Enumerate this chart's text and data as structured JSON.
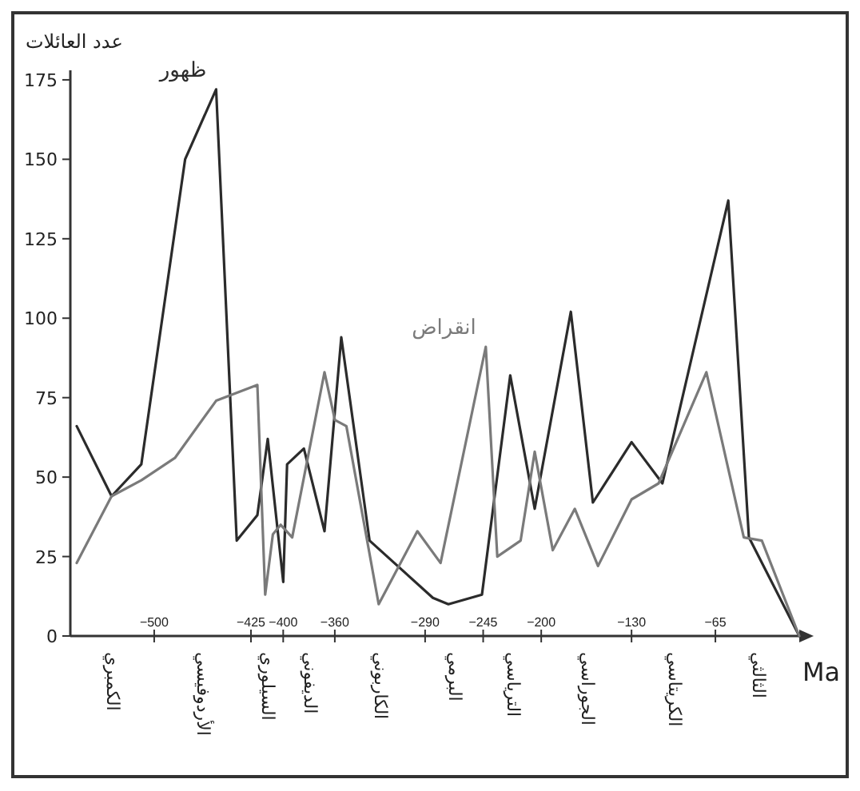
{
  "chart_data": {
    "type": "line",
    "ylabel": "عدد العائلات",
    "xlabel": "Ma",
    "xlim": [
      -565,
      0
    ],
    "xticks": [
      -500,
      -425,
      -400,
      -360,
      -290,
      -245,
      -200,
      -130,
      -65
    ],
    "ylim": [
      0,
      178
    ],
    "yticks": [
      0,
      25,
      50,
      75,
      100,
      125,
      150,
      175
    ],
    "grid": false,
    "legend": false,
    "marker": "none",
    "line_style": "solid",
    "series": [
      {
        "name": "ظهور",
        "color": "#2b2b2b",
        "x": [
          -560,
          -533,
          -510,
          -476,
          -452,
          -436,
          -420,
          -412,
          -400,
          -397,
          -384,
          -368,
          -355,
          -333,
          -284,
          -272,
          -246,
          -224,
          -205,
          -177,
          -160,
          -130,
          -106,
          -55,
          -39,
          0
        ],
        "values": [
          66,
          44,
          54,
          150,
          172,
          30,
          38,
          62,
          17,
          54,
          59,
          33,
          94,
          30,
          12,
          10,
          13,
          82,
          40,
          102,
          42,
          61,
          48,
          137,
          31,
          0
        ]
      },
      {
        "name": "انقراض",
        "color": "#7a7a7a",
        "x": [
          -560,
          -533,
          -510,
          -484,
          -452,
          -420,
          -414,
          -408,
          -402,
          -393,
          -368,
          -360,
          -351,
          -326,
          -296,
          -278,
          -243,
          -234,
          -216,
          -205,
          -191,
          -174,
          -156,
          -130,
          -109,
          -72,
          -43,
          -29,
          0
        ],
        "values": [
          23,
          44,
          49,
          56,
          74,
          79,
          13,
          32,
          35,
          31,
          83,
          68,
          66,
          10,
          33,
          23,
          91,
          25,
          30,
          58,
          27,
          40,
          22,
          43,
          48,
          83,
          31,
          30,
          0
        ]
      }
    ],
    "annotations": [
      "الكمبري",
      "الأردوفيسي",
      "السيلوري",
      "الديفوني",
      "الكاربوني",
      "البرمي",
      "الترياسي",
      "الجوراسي",
      "الكريتاسي",
      "الثالثي"
    ]
  }
}
